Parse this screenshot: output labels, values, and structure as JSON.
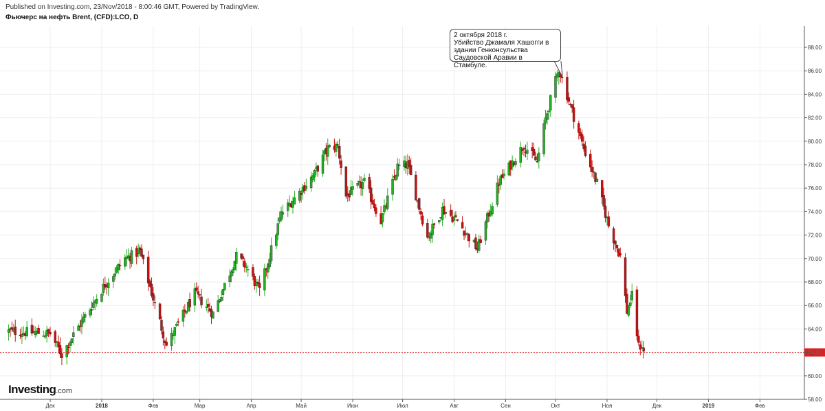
{
  "header": {
    "published": "Published on Investing.com, 23/Nov/2018 - 8:00:46 GMT, Powered by TradingView.",
    "title": "Фьючерс на нефть Brent, (CFD):LCO, D"
  },
  "logo": {
    "brand": "Investing",
    "suffix": ".com"
  },
  "annotation": {
    "text": "2 октября 2018 г.\nУбийство Джамаля Хашогги в здании Генконсульства Саудовской Аравии в Стамбуле."
  },
  "colors": {
    "up": "#22b322",
    "down": "#cc1010",
    "price_line": "#e02020",
    "grid": "#eeeeee"
  },
  "chart_data": {
    "type": "candlestick",
    "symbol": "LCO",
    "interval": "D",
    "ylim": [
      58,
      90
    ],
    "y_ticks": [
      "58.00",
      "60.00",
      "62.00",
      "64.00",
      "66.00",
      "68.00",
      "70.00",
      "72.00",
      "74.00",
      "76.00",
      "78.00",
      "80.00",
      "82.00",
      "84.00",
      "86.00",
      "88.00"
    ],
    "x_ticks": [
      {
        "label": "Дек",
        "date": "2017-12-01"
      },
      {
        "label": "2018",
        "date": "2018-01-01",
        "bold": true
      },
      {
        "label": "Фев",
        "date": "2018-02-01"
      },
      {
        "label": "Мар",
        "date": "2018-03-01"
      },
      {
        "label": "Апр",
        "date": "2018-04-01"
      },
      {
        "label": "Май",
        "date": "2018-05-01"
      },
      {
        "label": "Июн",
        "date": "2018-06-01"
      },
      {
        "label": "Июл",
        "date": "2018-07-01"
      },
      {
        "label": "Авг",
        "date": "2018-08-01"
      },
      {
        "label": "Сен",
        "date": "2018-09-01"
      },
      {
        "label": "Окт",
        "date": "2018-10-01"
      },
      {
        "label": "Ноя",
        "date": "2018-11-01"
      },
      {
        "label": "Дек",
        "date": "2018-12-01"
      },
      {
        "label": "2019",
        "date": "2019-01-01",
        "bold": true
      },
      {
        "label": "Фев",
        "date": "2019-02-01"
      }
    ],
    "last_price": {
      "value": 62.0,
      "label": "62.00"
    },
    "annotation_date": "2018-10-02",
    "key_points": [
      {
        "date": "2017-11-06",
        "close": 63.8
      },
      {
        "date": "2017-12-01",
        "close": 63.6
      },
      {
        "date": "2017-12-08",
        "close": 61.8
      },
      {
        "date": "2017-12-15",
        "close": 63.5
      },
      {
        "date": "2018-01-03",
        "close": 67.8
      },
      {
        "date": "2018-01-15",
        "close": 70.0
      },
      {
        "date": "2018-01-24",
        "close": 70.6
      },
      {
        "date": "2018-02-09",
        "close": 62.6
      },
      {
        "date": "2018-02-26",
        "close": 67.0
      },
      {
        "date": "2018-03-09",
        "close": 65.3
      },
      {
        "date": "2018-03-23",
        "close": 70.2
      },
      {
        "date": "2018-03-29",
        "close": 69.3
      },
      {
        "date": "2018-04-06",
        "close": 67.2
      },
      {
        "date": "2018-04-19",
        "close": 73.8
      },
      {
        "date": "2018-05-09",
        "close": 77.2
      },
      {
        "date": "2018-05-17",
        "close": 79.4
      },
      {
        "date": "2018-05-23",
        "close": 79.6
      },
      {
        "date": "2018-05-28",
        "close": 75.3
      },
      {
        "date": "2018-06-08",
        "close": 76.5
      },
      {
        "date": "2018-06-18",
        "close": 73.2
      },
      {
        "date": "2018-06-28",
        "close": 77.8
      },
      {
        "date": "2018-07-04",
        "close": 78.0
      },
      {
        "date": "2018-07-16",
        "close": 71.8
      },
      {
        "date": "2018-07-25",
        "close": 74.2
      },
      {
        "date": "2018-08-03",
        "close": 73.2
      },
      {
        "date": "2018-08-15",
        "close": 70.8
      },
      {
        "date": "2018-08-28",
        "close": 76.5
      },
      {
        "date": "2018-09-12",
        "close": 79.7
      },
      {
        "date": "2018-09-20",
        "close": 78.2
      },
      {
        "date": "2018-09-25",
        "close": 81.9
      },
      {
        "date": "2018-10-03",
        "close": 86.2
      },
      {
        "date": "2018-10-10",
        "close": 83.0
      },
      {
        "date": "2018-10-18",
        "close": 79.4
      },
      {
        "date": "2018-10-26",
        "close": 76.4
      },
      {
        "date": "2018-11-02",
        "close": 72.8
      },
      {
        "date": "2018-11-09",
        "close": 70.2
      },
      {
        "date": "2018-11-13",
        "close": 65.5
      },
      {
        "date": "2018-11-16",
        "close": 66.8
      },
      {
        "date": "2018-11-20",
        "close": 62.5
      },
      {
        "date": "2018-11-22",
        "close": 62.6
      },
      {
        "date": "2018-11-23",
        "close": 62.0
      }
    ]
  }
}
